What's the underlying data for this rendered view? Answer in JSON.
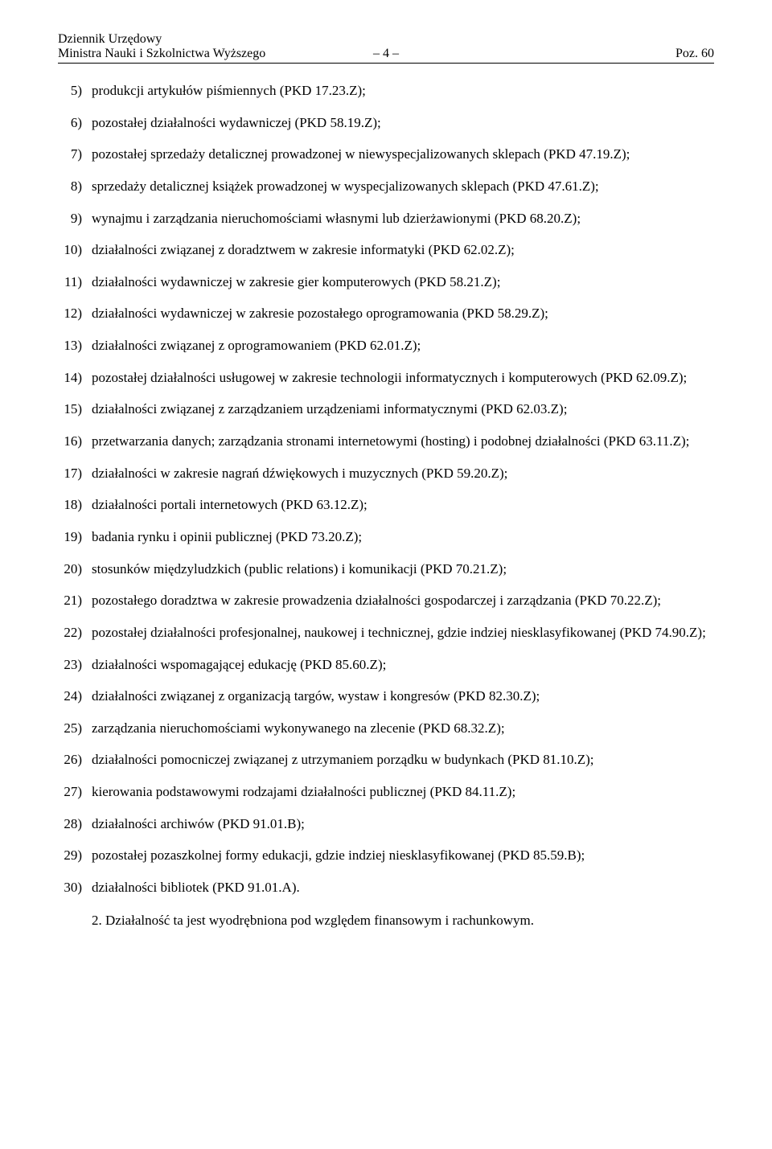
{
  "header": {
    "line1": "Dziennik Urzędowy",
    "left": "Ministra Nauki i Szkolnictwa Wyższego",
    "center": "– 4 –",
    "right": "Poz. 60"
  },
  "items": [
    {
      "num": "5)",
      "text": "produkcji artykułów piśmiennych (PKD 17.23.Z);"
    },
    {
      "num": "6)",
      "text": "pozostałej działalności wydawniczej (PKD 58.19.Z);"
    },
    {
      "num": "7)",
      "text": "pozostałej sprzedaży detalicznej prowadzonej w niewyspecjalizowanych sklepach (PKD 47.19.Z);"
    },
    {
      "num": "8)",
      "text": "sprzedaży detalicznej książek prowadzonej w wyspecjalizowanych sklepach (PKD 47.61.Z);"
    },
    {
      "num": "9)",
      "text": "wynajmu i zarządzania nieruchomościami własnymi lub dzierżawionymi (PKD 68.20.Z);"
    },
    {
      "num": "10)",
      "text": "działalności związanej z doradztwem w zakresie informatyki (PKD 62.02.Z);"
    },
    {
      "num": "11)",
      "text": "działalności wydawniczej w zakresie gier komputerowych (PKD 58.21.Z);"
    },
    {
      "num": "12)",
      "text": "działalności wydawniczej w zakresie pozostałego oprogramowania (PKD 58.29.Z);"
    },
    {
      "num": "13)",
      "text": "działalności związanej z oprogramowaniem (PKD 62.01.Z);"
    },
    {
      "num": "14)",
      "text": "pozostałej działalności usługowej w zakresie technologii informatycznych i komputerowych (PKD 62.09.Z);"
    },
    {
      "num": "15)",
      "text": "działalności związanej z zarządzaniem urządzeniami informatycznymi  (PKD 62.03.Z);"
    },
    {
      "num": "16)",
      "text": "przetwarzania danych; zarządzania stronami internetowymi (hosting) i podobnej działalności (PKD 63.11.Z);"
    },
    {
      "num": "17)",
      "text": "działalności w zakresie nagrań dźwiękowych i muzycznych (PKD 59.20.Z);"
    },
    {
      "num": "18)",
      "text": "działalności portali internetowych (PKD 63.12.Z);"
    },
    {
      "num": "19)",
      "text": "badania rynku i opinii publicznej (PKD 73.20.Z);"
    },
    {
      "num": "20)",
      "text": "stosunków międzyludzkich (public relations) i komunikacji (PKD 70.21.Z);"
    },
    {
      "num": "21)",
      "text": "pozostałego doradztwa w zakresie prowadzenia działalności gospodarczej i zarządzania (PKD 70.22.Z);"
    },
    {
      "num": "22)",
      "text": "pozostałej działalności profesjonalnej, naukowej i technicznej, gdzie indziej niesklasyfikowanej (PKD 74.90.Z);"
    },
    {
      "num": "23)",
      "text": "działalności wspomagającej edukację (PKD 85.60.Z);"
    },
    {
      "num": "24)",
      "text": "działalności związanej z organizacją targów, wystaw i kongresów (PKD 82.30.Z);"
    },
    {
      "num": "25)",
      "text": "zarządzania nieruchomościami wykonywanego na zlecenie (PKD 68.32.Z);"
    },
    {
      "num": "26)",
      "text": "działalności pomocniczej związanej z utrzymaniem porządku w budynkach (PKD 81.10.Z);"
    },
    {
      "num": "27)",
      "text": "kierowania podstawowymi rodzajami działalności publicznej (PKD 84.11.Z);"
    },
    {
      "num": "28)",
      "text": "działalności archiwów (PKD 91.01.B);"
    },
    {
      "num": "29)",
      "text": "pozostałej pozaszkolnej formy edukacji, gdzie indziej niesklasyfikowanej  (PKD 85.59.B);"
    },
    {
      "num": "30)",
      "text": "działalności bibliotek (PKD 91.01.A)."
    }
  ],
  "para2": "2. Działalność ta jest wyodrębniona pod względem finansowym i rachunkowym."
}
